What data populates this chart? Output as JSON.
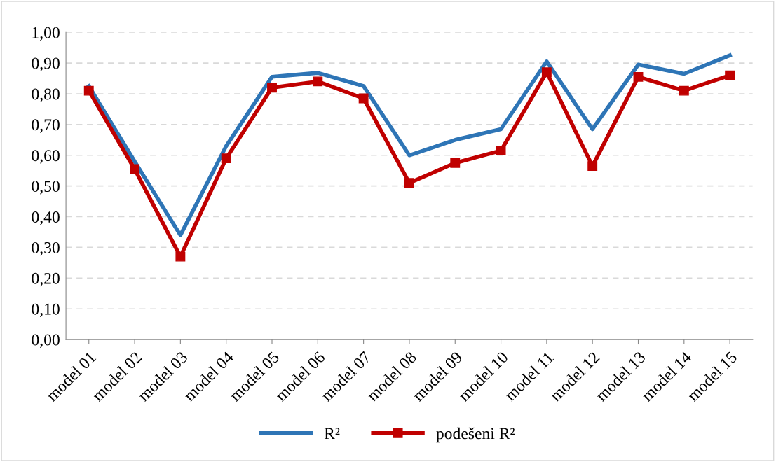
{
  "chart_data": {
    "type": "line",
    "categories": [
      "model 01",
      "model 02",
      "model 03",
      "model 04",
      "model 05",
      "model 06",
      "model 07",
      "model 08",
      "model 09",
      "model 10",
      "model 11",
      "model 12",
      "model 13",
      "model 14",
      "model 15"
    ],
    "series": [
      {
        "name": "R²",
        "color": "#2e75b6",
        "marker": "none",
        "values": [
          0.825,
          0.58,
          0.34,
          0.63,
          0.855,
          0.868,
          0.825,
          0.6,
          0.65,
          0.685,
          0.905,
          0.685,
          0.895,
          0.865,
          0.925
        ]
      },
      {
        "name": "podešeni R²",
        "color": "#c00000",
        "marker": "square",
        "values": [
          0.81,
          0.555,
          0.27,
          0.59,
          0.82,
          0.84,
          0.785,
          0.51,
          0.575,
          0.615,
          0.87,
          0.565,
          0.855,
          0.81,
          0.86
        ]
      }
    ],
    "ylim": [
      0,
      1
    ],
    "yticks": [
      {
        "value": 0,
        "label": "0,00"
      },
      {
        "value": 0.1,
        "label": "0,10"
      },
      {
        "value": 0.2,
        "label": "0,20"
      },
      {
        "value": 0.3,
        "label": "0,30"
      },
      {
        "value": 0.4,
        "label": "0,40"
      },
      {
        "value": 0.5,
        "label": "0,50"
      },
      {
        "value": 0.6,
        "label": "0,60"
      },
      {
        "value": 0.7,
        "label": "0,70"
      },
      {
        "value": 0.8,
        "label": "0,80"
      },
      {
        "value": 0.9,
        "label": "0,90"
      },
      {
        "value": 1,
        "label": "1,00"
      }
    ],
    "grid": "y",
    "legend": "bottom",
    "line_style": "solid"
  }
}
